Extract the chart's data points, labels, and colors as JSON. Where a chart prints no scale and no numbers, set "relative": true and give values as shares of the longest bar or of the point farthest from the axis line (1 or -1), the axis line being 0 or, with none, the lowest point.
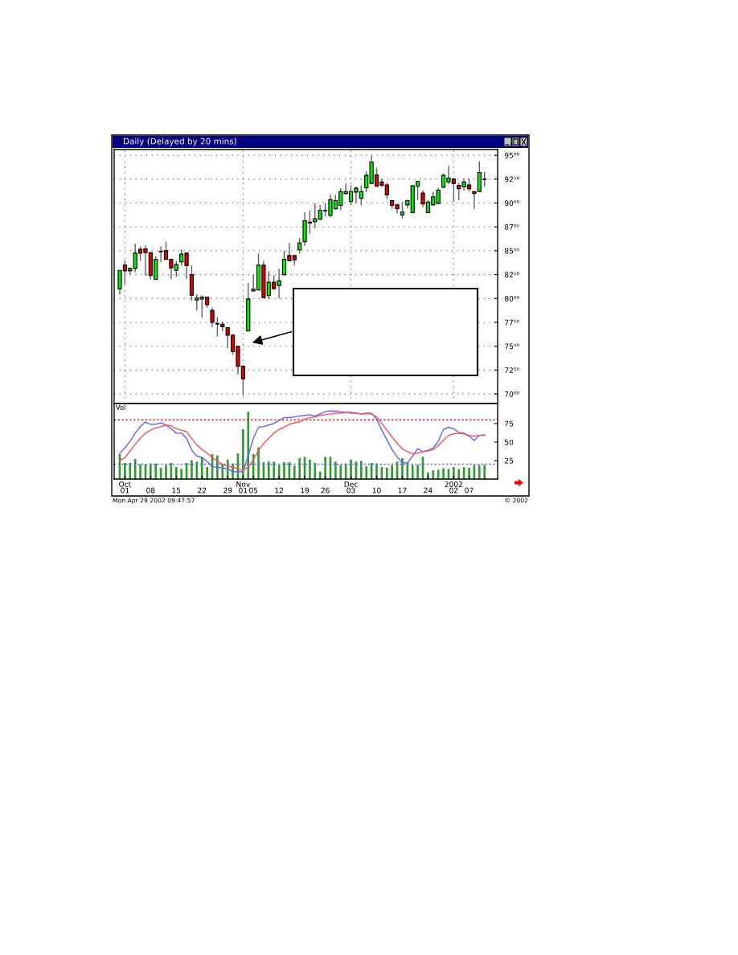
{
  "chart_data": [
    {
      "type": "candlestick",
      "title": "Daily (Delayed by 20 mins)",
      "categories": [
        null,
        null,
        null,
        null,
        null,
        null,
        null,
        null,
        null,
        null,
        null,
        null,
        null,
        null,
        null,
        null,
        null,
        null,
        null,
        null,
        null,
        null,
        null,
        null,
        null,
        null,
        null,
        null,
        null,
        null,
        null,
        null,
        null,
        null,
        null,
        null,
        null,
        null,
        null,
        null,
        null,
        null,
        null,
        null,
        null,
        null,
        null,
        null,
        null,
        null,
        null,
        null,
        null,
        null,
        null,
        null,
        null,
        null,
        null,
        null,
        null,
        null,
        null,
        null,
        null,
        null,
        null,
        null,
        null,
        null,
        null,
        null
      ],
      "ohlc": [
        [
          81.0,
          83.0,
          80.4,
          82.95
        ],
        [
          83.5,
          84.0,
          81.5,
          82.9
        ],
        [
          82.9,
          83.2,
          82.5,
          83.15
        ],
        [
          83.15,
          85.75,
          82.75,
          84.75
        ],
        [
          85.15,
          85.45,
          83.95,
          84.75
        ],
        [
          85.2,
          85.55,
          82.4,
          84.8
        ],
        [
          84.8,
          84.85,
          82.0,
          82.4
        ],
        [
          82.0,
          84.4,
          81.9,
          84.1
        ],
        [
          84.9,
          85.45,
          83.8,
          84.9
        ],
        [
          85.0,
          85.95,
          84.1,
          84.1
        ],
        [
          84.1,
          84.1,
          82.0,
          83.2
        ],
        [
          82.95,
          83.95,
          82.25,
          83.55
        ],
        [
          83.85,
          85.15,
          83.45,
          84.65
        ],
        [
          84.75,
          84.8,
          82.05,
          83.45
        ],
        [
          82.5,
          83.45,
          79.75,
          80.35
        ],
        [
          79.85,
          80.45,
          78.75,
          80.05
        ],
        [
          79.95,
          80.35,
          78.0,
          80.15
        ],
        [
          80.15,
          80.2,
          79.05,
          79.35
        ],
        [
          78.75,
          79.05,
          77.0,
          77.5
        ],
        [
          77.35,
          78.05,
          76.0,
          77.35
        ],
        [
          77.3,
          77.6,
          76.6,
          77.05
        ],
        [
          76.95,
          77.0,
          74.8,
          76.15
        ],
        [
          76.15,
          76.3,
          74.1,
          74.45
        ],
        [
          75.0,
          75.0,
          72.05,
          72.9
        ],
        [
          72.9,
          72.9,
          69.85,
          71.6
        ],
        [
          76.6,
          81.65,
          76.6,
          79.95
        ],
        [
          80.8,
          82.5,
          80.8,
          81.0
        ],
        [
          80.9,
          84.75,
          80.9,
          83.5
        ],
        [
          83.5,
          83.95,
          80.1,
          80.1
        ],
        [
          80.3,
          82.85,
          79.95,
          81.7
        ],
        [
          81.7,
          82.4,
          80.9,
          81.05
        ],
        [
          81.35,
          83.1,
          80.0,
          81.85
        ],
        [
          82.5,
          85.0,
          82.4,
          84.1
        ],
        [
          84.5,
          85.8,
          83.9,
          83.95
        ],
        [
          84.5,
          84.5,
          83.45,
          84.05
        ],
        [
          85.1,
          86.35,
          84.7,
          85.8
        ],
        [
          85.95,
          89.05,
          85.5,
          88.15
        ],
        [
          88.0,
          89.2,
          86.8,
          87.9
        ],
        [
          88.05,
          89.95,
          87.35,
          88.35
        ],
        [
          88.3,
          89.8,
          88.2,
          89.25
        ],
        [
          89.2,
          89.95,
          88.6,
          89.2
        ],
        [
          88.7,
          90.9,
          88.5,
          90.35
        ],
        [
          89.4,
          90.85,
          89.3,
          90.25
        ],
        [
          89.75,
          91.55,
          89.25,
          91.2
        ],
        [
          91.0,
          92.05,
          90.85,
          91.2
        ],
        [
          90.15,
          91.85,
          89.8,
          91.2
        ],
        [
          91.15,
          91.75,
          89.95,
          91.55
        ],
        [
          90.5,
          91.85,
          89.75,
          91.2
        ],
        [
          91.6,
          93.3,
          91.15,
          92.9
        ],
        [
          92.05,
          95.0,
          92.0,
          94.3
        ],
        [
          92.95,
          93.7,
          91.7,
          91.75
        ],
        [
          92.2,
          92.55,
          91.65,
          91.85
        ],
        [
          91.9,
          92.1,
          90.45,
          90.85
        ],
        [
          90.25,
          90.35,
          89.4,
          89.75
        ],
        [
          89.8,
          89.9,
          88.9,
          89.4
        ],
        [
          88.75,
          90.1,
          88.4,
          89.05
        ],
        [
          89.8,
          90.35,
          89.45,
          90.25
        ],
        [
          89.0,
          91.85,
          89.0,
          91.8
        ],
        [
          91.75,
          92.25,
          90.3,
          92.25
        ],
        [
          91.05,
          91.3,
          89.55,
          89.9
        ],
        [
          89.0,
          90.3,
          89.0,
          90.1
        ],
        [
          89.8,
          91.15,
          89.8,
          90.65
        ],
        [
          89.95,
          91.55,
          89.95,
          91.35
        ],
        [
          91.65,
          93.1,
          91.55,
          92.9
        ],
        [
          92.2,
          93.9,
          92.0,
          92.6
        ],
        [
          92.5,
          92.5,
          90.15,
          92.05
        ],
        [
          91.85,
          92.1,
          90.3,
          91.5
        ],
        [
          91.7,
          92.55,
          91.3,
          92.2
        ],
        [
          91.9,
          92.55,
          91.2,
          91.5
        ],
        [
          91.2,
          91.2,
          89.4,
          91.0
        ],
        [
          91.2,
          94.35,
          91.15,
          93.2
        ],
        [
          92.5,
          93.25,
          91.7,
          92.5
        ]
      ],
      "colors": [
        "#00f000",
        "#e00000",
        "#00f000",
        "#00f000",
        "#e00000",
        "#e00000",
        "#e00000",
        "#00f000",
        "#000000",
        "#e00000",
        "#e00000",
        "#00f000",
        "#00f000",
        "#e00000",
        "#e00000",
        "#00f000",
        "#00f000",
        "#e00000",
        "#e00000",
        "#000000",
        "#e00000",
        "#e00000",
        "#e00000",
        "#e00000",
        "#e00000",
        "#00f000",
        "#00f000",
        "#00f000",
        "#e00000",
        "#00f000",
        "#e00000",
        "#00f000",
        "#00f000",
        "#e00000",
        "#e00000",
        "#00f000",
        "#00f000",
        "#e00000",
        "#00f000",
        "#00f000",
        "#000000",
        "#00f000",
        "#00f000",
        "#00f000",
        "#00f000",
        "#00f000",
        "#00f000",
        "#00f000",
        "#00f000",
        "#00f000",
        "#e00000",
        "#e00000",
        "#e00000",
        "#e00000",
        "#e00000",
        "#00f000",
        "#00f000",
        "#00f000",
        "#00f000",
        "#e00000",
        "#00f000",
        "#00f000",
        "#00f000",
        "#00f000",
        "#00f000",
        "#e00000",
        "#e00000",
        "#00f000",
        "#e00000",
        "#e00000",
        "#00f000",
        "#000000"
      ],
      "ylim": [
        69.0,
        95.6
      ],
      "yticks": [
        {
          "value": 70,
          "label": "70⁰⁰"
        },
        {
          "value": 72.5,
          "label": "72⁵⁰"
        },
        {
          "value": 75,
          "label": "75⁰⁰"
        },
        {
          "value": 77.5,
          "label": "77⁵⁰"
        },
        {
          "value": 80,
          "label": "80⁰⁰"
        },
        {
          "value": 82.5,
          "label": "82⁵⁰"
        },
        {
          "value": 85,
          "label": "85⁰⁰"
        },
        {
          "value": 87.5,
          "label": "87⁵⁰"
        },
        {
          "value": 90,
          "label": "90⁰⁰"
        },
        {
          "value": 92.5,
          "label": "92⁵⁰"
        },
        {
          "value": 95,
          "label": "95⁰⁰"
        }
      ],
      "grid": true,
      "tick_labels": "y"
    },
    {
      "type": "bar",
      "title": "Vol",
      "categories": [
        null,
        "Oct",
        null,
        null,
        null,
        null,
        null,
        null,
        null,
        null,
        null,
        null,
        null,
        null,
        null,
        null,
        null,
        null,
        null,
        null,
        null,
        null,
        null,
        null,
        "Nov",
        null,
        null,
        null,
        null,
        null,
        null,
        null,
        null,
        null,
        null,
        null,
        null,
        null,
        null,
        null,
        null,
        null,
        null,
        null,
        null,
        "Dec",
        null,
        null,
        null,
        null,
        null,
        null,
        null,
        null,
        null,
        null,
        null,
        null,
        null,
        null,
        null,
        null,
        null,
        null,
        null,
        "2002",
        null,
        null,
        null,
        null,
        null,
        null
      ],
      "values": [
        0.37,
        0.24,
        0.24,
        0.3,
        0.22,
        0.22,
        0.23,
        0.23,
        0.17,
        0.21,
        0.24,
        0.18,
        0.15,
        0.24,
        0.28,
        0.26,
        0.33,
        0.18,
        0.37,
        0.35,
        0.22,
        0.29,
        0.23,
        0.38,
        0.74,
        1.0,
        0.37,
        0.47,
        0.25,
        0.26,
        0.26,
        0.21,
        0.25,
        0.25,
        0.2,
        0.31,
        0.33,
        0.29,
        0.24,
        0.11,
        0.33,
        0.33,
        0.26,
        0.21,
        0.23,
        0.29,
        0.26,
        0.27,
        0.19,
        0.24,
        0.23,
        0.18,
        0.17,
        0.21,
        0.26,
        0.31,
        0.25,
        0.21,
        0.21,
        0.33,
        0.1,
        0.13,
        0.14,
        0.16,
        0.15,
        0.18,
        0.15,
        0.18,
        0.17,
        0.21,
        0.21,
        0.21
      ],
      "color": "#339933",
      "relative": true,
      "tick_labels": "x"
    },
    {
      "type": "line",
      "categories": [
        null,
        "01",
        null,
        null,
        null,
        null,
        "08",
        null,
        null,
        null,
        null,
        "15",
        null,
        null,
        null,
        null,
        "22",
        null,
        null,
        null,
        null,
        "29",
        null,
        null,
        "01",
        null,
        "05",
        null,
        null,
        null,
        null,
        "12",
        null,
        null,
        null,
        null,
        "19",
        null,
        null,
        null,
        "26",
        null,
        null,
        null,
        null,
        "03",
        null,
        null,
        null,
        null,
        "10",
        null,
        null,
        null,
        null,
        "17",
        null,
        null,
        null,
        null,
        "24",
        null,
        null,
        null,
        null,
        "02",
        null,
        null,
        "07",
        null,
        null,
        null
      ],
      "series": [
        {
          "color": "#6060ff",
          "values": [
            35,
            42,
            51,
            62,
            71,
            77,
            74,
            74,
            76,
            73,
            68,
            62,
            62,
            55,
            39,
            31,
            29,
            24,
            17,
            16,
            15,
            14,
            10,
            10,
            10,
            31,
            55,
            70,
            71,
            73,
            75,
            79,
            83,
            83,
            84,
            85,
            86,
            87,
            85,
            88,
            91,
            92,
            92,
            91,
            90,
            90,
            89,
            88,
            89,
            89,
            81,
            66,
            53,
            40,
            30,
            22,
            22,
            31,
            41,
            37,
            39,
            42,
            51,
            67,
            70,
            68,
            63,
            62,
            58,
            52,
            59,
            60
          ]
        },
        {
          "color": "#ff5050",
          "values": [
            25,
            29,
            38,
            47,
            55,
            62,
            66,
            69,
            71,
            73,
            72,
            68,
            66,
            64,
            55,
            46,
            40,
            35,
            29,
            24,
            20,
            18,
            16,
            14,
            12,
            16,
            26,
            39,
            48,
            55,
            62,
            67,
            70,
            74,
            76,
            77,
            81,
            83,
            84,
            86,
            87,
            88,
            89,
            89,
            90,
            89,
            89,
            88,
            88,
            88,
            84,
            75,
            66,
            57,
            48,
            41,
            37,
            34,
            35,
            37,
            38,
            40,
            45,
            52,
            59,
            61,
            62,
            61,
            59,
            58,
            59,
            59
          ]
        }
      ],
      "ylim": [
        0,
        102
      ],
      "yticks": [
        25,
        50,
        75
      ],
      "ref_lines": [
        {
          "axis": "y",
          "value": 80,
          "color": "#ff0000",
          "line_style": "dotted"
        },
        {
          "axis": "y",
          "value": 20,
          "color": "#6060ff",
          "line_style": "dotted"
        }
      ],
      "annotations": [
        "Mon Apr 29 2002 09:47:57",
        "© 2002"
      ]
    }
  ]
}
